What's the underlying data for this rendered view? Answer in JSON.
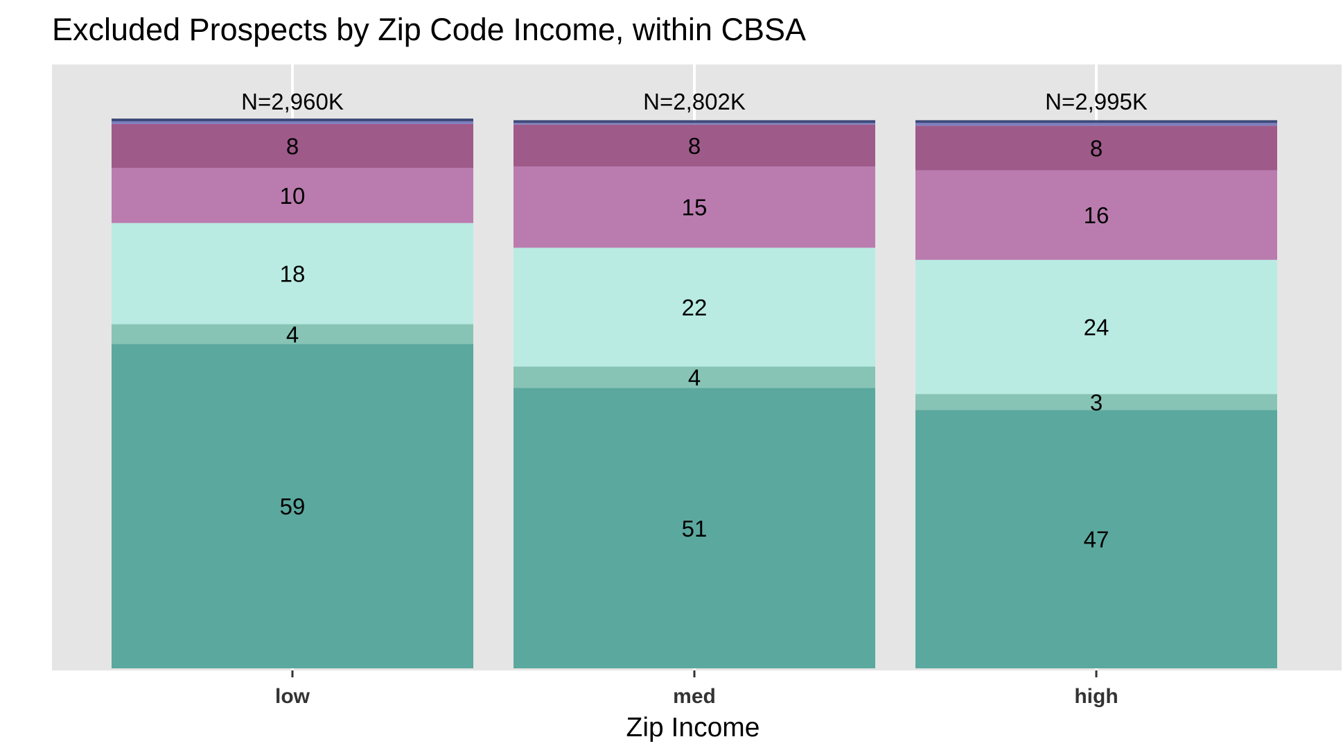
{
  "chart_data": {
    "type": "bar",
    "stacked": true,
    "title": "Excluded Prospects by Zip Code Income, within CBSA",
    "xlabel": "Zip Income",
    "ylabel": "",
    "ylim": [
      0,
      100
    ],
    "grid": true,
    "legend": "none",
    "categories": [
      "low",
      "med",
      "high"
    ],
    "bar_annotations": [
      "N=2,960K",
      "N=2,802K",
      "N=2,995K"
    ],
    "series": [
      {
        "color": "#5ba89e",
        "values": [
          59,
          51,
          47
        ],
        "labels": [
          "59",
          "51",
          "47"
        ]
      },
      {
        "color": "#87c4b5",
        "values": [
          3.6,
          3.9,
          2.9
        ],
        "labels": [
          "4",
          "4",
          "3"
        ]
      },
      {
        "color": "#b9ebe3",
        "values": [
          18.4,
          21.6,
          24.4
        ],
        "labels": [
          "18",
          "22",
          "24"
        ]
      },
      {
        "color": "#ba7caf",
        "values": [
          10.0,
          14.8,
          16.3
        ],
        "labels": [
          "10",
          "15",
          "16"
        ]
      },
      {
        "color": "#9e5a89",
        "values": [
          8.0,
          7.6,
          8.1
        ],
        "labels": [
          "8",
          "8",
          "8"
        ]
      },
      {
        "color": "#7f7fbf",
        "values": [
          0.5,
          0.3,
          0.5
        ],
        "labels": [
          "",
          "",
          ""
        ]
      },
      {
        "color": "#3e4a7a",
        "values": [
          0.5,
          0.5,
          0.5
        ],
        "labels": [
          "",
          "",
          ""
        ]
      }
    ]
  }
}
